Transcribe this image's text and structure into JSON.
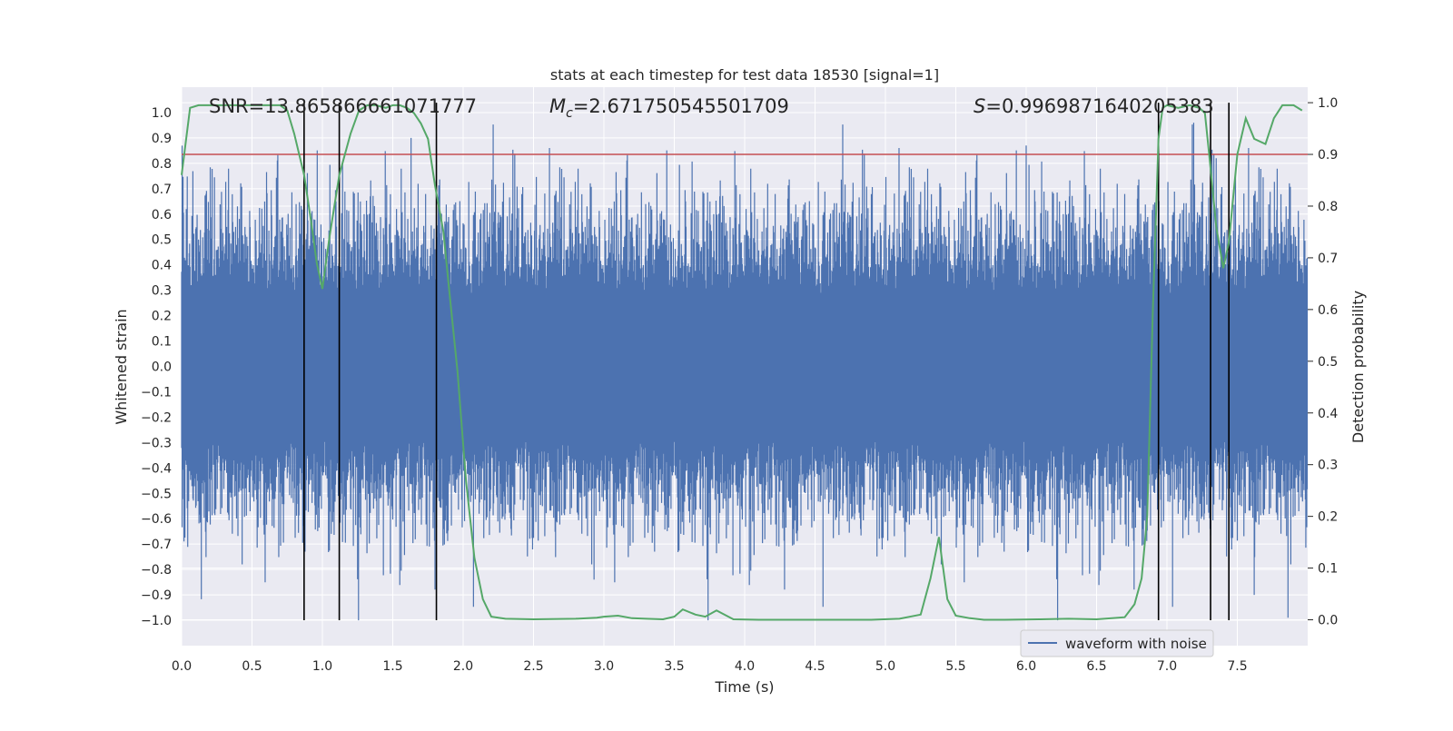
{
  "chart_data": {
    "type": "line",
    "title": "stats at each timestep for test data 18530 [signal=1]",
    "xlabel": "Time (s)",
    "ylabel": "Whitened strain",
    "ylabel_right": "Detection probability",
    "xlim": [
      0,
      8
    ],
    "ylim": [
      -1.1,
      1.1
    ],
    "ylim_right": [
      -0.05,
      1.03
    ],
    "x_ticks": [
      0.0,
      0.5,
      1.0,
      1.5,
      2.0,
      2.5,
      3.0,
      3.5,
      4.0,
      4.5,
      5.0,
      5.5,
      6.0,
      6.5,
      7.0,
      7.5
    ],
    "x_tick_labels": [
      "0.0",
      "0.5",
      "1.0",
      "1.5",
      "2.0",
      "2.5",
      "3.0",
      "3.5",
      "4.0",
      "4.5",
      "5.0",
      "5.5",
      "6.0",
      "6.5",
      "7.0",
      "7.5"
    ],
    "y_ticks": [
      1.0,
      0.9,
      0.8,
      0.7,
      0.6,
      0.5,
      0.4,
      0.3,
      0.2,
      0.1,
      0.0,
      -0.1,
      -0.2,
      -0.3,
      -0.4,
      -0.5,
      -0.6,
      -0.7,
      -0.8,
      -0.9,
      -1.0
    ],
    "y_tick_labels": [
      "1.0",
      "0.9",
      "0.8",
      "0.7",
      "0.6",
      "0.5",
      "0.4",
      "0.3",
      "0.2",
      "0.1",
      "0.0",
      "−0.1",
      "−0.2",
      "−0.3",
      "−0.4",
      "−0.5",
      "−0.6",
      "−0.7",
      "−0.8",
      "−0.9",
      "−1.0"
    ],
    "y2_ticks": [
      1.0,
      0.9,
      0.8,
      0.7,
      0.6,
      0.5,
      0.4,
      0.3,
      0.2,
      0.1,
      0.0
    ],
    "y2_tick_labels": [
      "1.0",
      "0.9",
      "0.8",
      "0.7",
      "0.6",
      "0.5",
      "0.4",
      "0.3",
      "0.2",
      "0.1",
      "0.0"
    ],
    "grid": true,
    "legend": {
      "position": "bottom-right",
      "entries": [
        "waveform with noise"
      ]
    },
    "annotations": {
      "snr": "SNR=13.865866661071777",
      "mc_symbol": "M",
      "mc_sub": "c",
      "mc_value": "=2.671750545501709",
      "s_symbol": "S",
      "s_value": "=0.9969871640205383"
    },
    "threshold_right": 0.9,
    "event_lines_x": [
      0.87,
      1.12,
      1.81,
      6.94,
      7.31,
      7.44
    ],
    "waveform": {
      "name": "waveform with noise",
      "typical_amplitude": 0.38,
      "peaks_positive": [
        [
          1.63,
          0.9
        ],
        [
          6.0,
          0.87
        ],
        [
          7.19,
          0.96
        ],
        [
          7.35,
          0.82
        ]
      ],
      "peaks_negative": [
        [
          2.93,
          -0.84
        ],
        [
          7.86,
          -0.99
        ],
        [
          7.62,
          -0.9
        ]
      ]
    },
    "series": [
      {
        "name": "detection probability",
        "axis": "right",
        "x": [
          0.0,
          0.06,
          0.12,
          0.2,
          0.3,
          0.4,
          0.5,
          0.6,
          0.7,
          0.75,
          0.8,
          0.87,
          0.92,
          0.96,
          1.0,
          1.05,
          1.12,
          1.2,
          1.26,
          1.32,
          1.38,
          1.45,
          1.5,
          1.55,
          1.6,
          1.65,
          1.7,
          1.75,
          1.8,
          1.86,
          1.9,
          1.96,
          2.02,
          2.08,
          2.14,
          2.2,
          2.3,
          2.5,
          2.8,
          2.95,
          3.0,
          3.1,
          3.2,
          3.3,
          3.42,
          3.5,
          3.56,
          3.65,
          3.72,
          3.8,
          3.92,
          4.1,
          4.3,
          4.6,
          4.9,
          5.1,
          5.25,
          5.32,
          5.38,
          5.44,
          5.5,
          5.6,
          5.7,
          5.85,
          6.1,
          6.3,
          6.5,
          6.7,
          6.77,
          6.82,
          6.86,
          6.9,
          6.94,
          6.97,
          7.0,
          7.08,
          7.16,
          7.23,
          7.27,
          7.3,
          7.35,
          7.4,
          7.44,
          7.5,
          7.56,
          7.62,
          7.7,
          7.76,
          7.82,
          7.9,
          7.96
        ],
        "values": [
          0.86,
          0.99,
          0.995,
          0.995,
          0.995,
          0.995,
          0.995,
          0.995,
          0.995,
          0.985,
          0.94,
          0.86,
          0.77,
          0.69,
          0.64,
          0.74,
          0.86,
          0.94,
          0.985,
          0.995,
          0.995,
          0.99,
          0.995,
          0.995,
          0.99,
          0.98,
          0.96,
          0.93,
          0.84,
          0.75,
          0.64,
          0.48,
          0.27,
          0.12,
          0.04,
          0.006,
          0.002,
          0.001,
          0.002,
          0.004,
          0.006,
          0.008,
          0.003,
          0.002,
          0.001,
          0.006,
          0.02,
          0.01,
          0.006,
          0.018,
          0.001,
          0.0,
          0.0,
          0.0,
          0.0,
          0.002,
          0.01,
          0.08,
          0.16,
          0.04,
          0.008,
          0.003,
          0.0,
          0.0,
          0.001,
          0.002,
          0.001,
          0.005,
          0.03,
          0.08,
          0.2,
          0.6,
          0.93,
          0.99,
          0.995,
          0.99,
          0.995,
          0.99,
          0.98,
          0.9,
          0.76,
          0.68,
          0.73,
          0.9,
          0.97,
          0.93,
          0.92,
          0.97,
          0.995,
          0.995,
          0.985
        ]
      }
    ]
  }
}
